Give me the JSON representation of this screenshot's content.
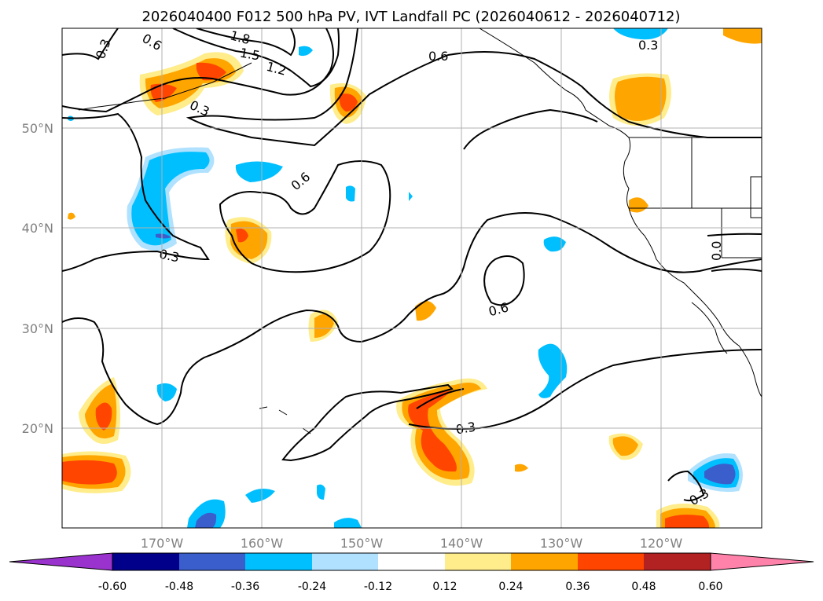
{
  "title": "2026040400 F012 500 hPa PV, IVT Landfall PC (2026040612 - 2026040712)",
  "map": {
    "lat_ticks": [
      "50°N",
      "40°N",
      "30°N",
      "20°N"
    ],
    "lon_ticks": [
      "170°W",
      "160°W",
      "150°W",
      "140°W",
      "130°W",
      "120°W"
    ],
    "lon_range": [
      -180,
      -110
    ],
    "lat_range": [
      10,
      60
    ],
    "grid": true,
    "contour_labels": [
      "0.3",
      "0.6",
      "1.8",
      "1.5",
      "1.2",
      "0.3",
      "0.6",
      "0.3",
      "0.6",
      "0.3",
      "0.6",
      "0.3",
      "0.3",
      "0.0"
    ]
  },
  "colorbar": {
    "levels": [
      "-0.60",
      "-0.48",
      "-0.36",
      "-0.24",
      "-0.12",
      "0.12",
      "0.24",
      "0.36",
      "0.48",
      "0.60"
    ],
    "colors": [
      "#9a32cd",
      "#00008b",
      "#3a5fcd",
      "#00bfff",
      "#b0e2ff",
      "#ffffff",
      "#ffec8b",
      "#ffa500",
      "#ff4500",
      "#b22222",
      "#ff82ab"
    ]
  }
}
